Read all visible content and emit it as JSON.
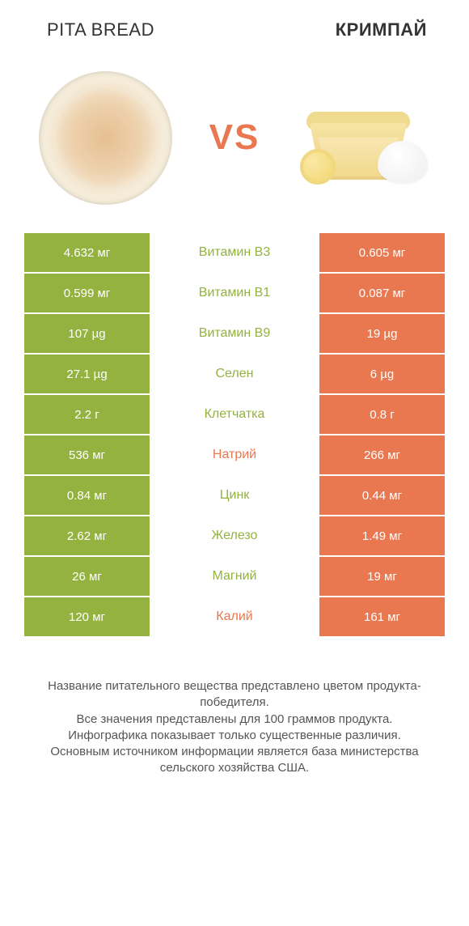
{
  "header": {
    "left_title": "PITA BREAD",
    "right_title": "КРИМПАЙ",
    "vs_label": "VS"
  },
  "colors": {
    "left_bar": "#94b23f",
    "right_bar": "#e97850",
    "mid_left_text": "#94b23f",
    "mid_right_text": "#e97850",
    "row_gap": "#ffffff"
  },
  "typography": {
    "title_fontsize": 22,
    "vs_fontsize": 44,
    "cell_fontsize": 15,
    "mid_fontsize": 16,
    "footer_fontsize": 15
  },
  "rows": [
    {
      "left": "4.632 мг",
      "label": "Витамин B3",
      "right": "0.605 мг",
      "winner": "left"
    },
    {
      "left": "0.599 мг",
      "label": "Витамин B1",
      "right": "0.087 мг",
      "winner": "left"
    },
    {
      "left": "107 µg",
      "label": "Витамин B9",
      "right": "19 µg",
      "winner": "left"
    },
    {
      "left": "27.1 µg",
      "label": "Селен",
      "right": "6 µg",
      "winner": "left"
    },
    {
      "left": "2.2 г",
      "label": "Клетчатка",
      "right": "0.8 г",
      "winner": "left"
    },
    {
      "left": "536 мг",
      "label": "Натрий",
      "right": "266 мг",
      "winner": "right"
    },
    {
      "left": "0.84 мг",
      "label": "Цинк",
      "right": "0.44 мг",
      "winner": "left"
    },
    {
      "left": "2.62 мг",
      "label": "Железо",
      "right": "1.49 мг",
      "winner": "left"
    },
    {
      "left": "26 мг",
      "label": "Магний",
      "right": "19 мг",
      "winner": "left"
    },
    {
      "left": "120 мг",
      "label": "Калий",
      "right": "161 мг",
      "winner": "right"
    }
  ],
  "footer": {
    "line1": "Название питательного вещества представлено цветом продукта-победителя.",
    "line2": "Все значения представлены для 100 граммов продукта.",
    "line3": "Инфографика показывает только существенные различия.",
    "line4": "Основным источником информации является база министерства сельского хозяйства США."
  }
}
